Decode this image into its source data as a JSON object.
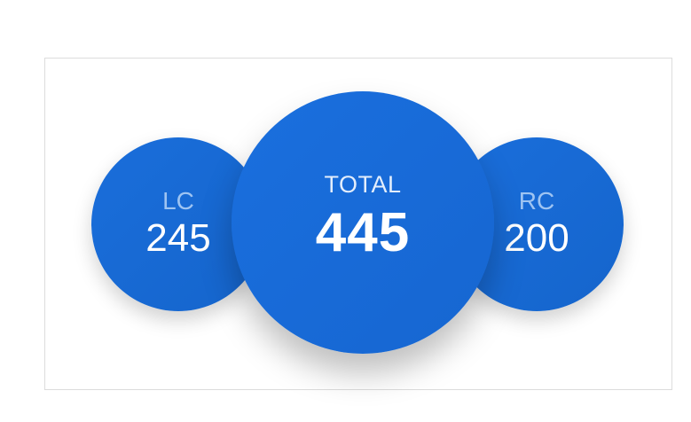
{
  "stats": {
    "left": {
      "label": "LC",
      "value": "245"
    },
    "center": {
      "label": "TOTAL",
      "value": "445"
    },
    "right": {
      "label": "RC",
      "value": "200"
    }
  },
  "colors": {
    "circle_fill": "#1a6edb",
    "side_label": "#9ec4f2",
    "value_text": "#ffffff",
    "panel_border": "#dcdcdc"
  }
}
